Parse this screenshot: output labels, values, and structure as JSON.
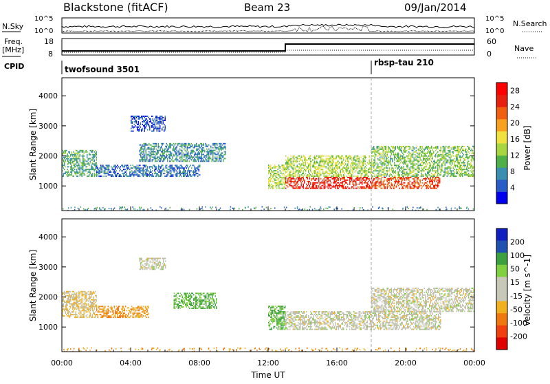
{
  "header": {
    "station": "Blackstone (fitACF)",
    "beam": "Beam 23",
    "date": "09/Jan/2014"
  },
  "summary_panels": {
    "nsky_label": "N.Sky",
    "nsearch_label": "N.Search",
    "nsky_ticks": [
      "10^5",
      "10^0"
    ],
    "nsearch_ticks": [
      "10^5",
      "10^0"
    ],
    "freq_label": "Freq.",
    "freq_unit": "[MHz]",
    "freq_ticks": [
      "18",
      "8"
    ],
    "nave_label": "Nave",
    "nave_ticks": [
      "60",
      "0"
    ],
    "cpid_label": "CPID",
    "cpid_segments": [
      {
        "name": "twofsound 3501",
        "start_hour": 0
      },
      {
        "name": "rbsp-tau 210",
        "start_hour": 18
      }
    ]
  },
  "colors": {
    "power_scale": [
      "#0000ee",
      "#2a5cc8",
      "#3a8fb0",
      "#4fb04a",
      "#a8d640",
      "#f0e040",
      "#f8a020",
      "#f06010",
      "#e82010",
      "#ff0000"
    ],
    "velocity_scale": [
      "#e00000",
      "#f04010",
      "#f07810",
      "#f0b020",
      "#c8c8b8",
      "#c8c8b8",
      "#80d040",
      "#3ca040",
      "#2050b0",
      "#1020c0"
    ],
    "ground_scatter": "#c0c0b0"
  },
  "chart_data": [
    {
      "type": "heatmap",
      "name_panel": "power",
      "ylabel": "Slant Range [km]",
      "xlabel": "",
      "yticks": [
        1000,
        2000,
        3000,
        4000
      ],
      "ylim": [
        180,
        4600
      ],
      "xlim": [
        0,
        24
      ],
      "colorbar_label": "Power [dB]",
      "colorbar_ticks": [
        4,
        8,
        12,
        16,
        20,
        24,
        28
      ],
      "colorbar_range": [
        0,
        30
      ],
      "echo_bands": [
        {
          "x_start": 0.0,
          "x_end": 2.0,
          "y_low": 1300,
          "y_high": 2200,
          "level_db": 10
        },
        {
          "x_start": 2.0,
          "x_end": 8.0,
          "y_low": 1300,
          "y_high": 1700,
          "level_db": 6
        },
        {
          "x_start": 4.5,
          "x_end": 9.5,
          "y_low": 1800,
          "y_high": 2400,
          "level_db": 8
        },
        {
          "x_start": 4.0,
          "x_end": 6.0,
          "y_low": 2800,
          "y_high": 3300,
          "level_db": 4
        },
        {
          "x_start": 12.0,
          "x_end": 13.0,
          "y_low": 900,
          "y_high": 1700,
          "level_db": 14
        },
        {
          "x_start": 13.0,
          "x_end": 18.0,
          "y_low": 900,
          "y_high": 1300,
          "level_db": 26
        },
        {
          "x_start": 13.0,
          "x_end": 18.0,
          "y_low": 1300,
          "y_high": 2000,
          "level_db": 14
        },
        {
          "x_start": 18.0,
          "x_end": 22.0,
          "y_low": 900,
          "y_high": 1300,
          "level_db": 24
        },
        {
          "x_start": 18.0,
          "x_end": 24.0,
          "y_low": 1300,
          "y_high": 2300,
          "level_db": 12
        }
      ]
    },
    {
      "type": "heatmap",
      "name_panel": "velocity",
      "ylabel": "Slant Range [km]",
      "xlabel": "Time UT",
      "xticks": [
        "00:00",
        "04:00",
        "08:00",
        "12:00",
        "16:00",
        "20:00",
        "00:00"
      ],
      "yticks": [
        1000,
        2000,
        3000,
        4000
      ],
      "ylim": [
        180,
        4600
      ],
      "xlim": [
        0,
        24
      ],
      "colorbar_label": "Velocity [m s^-1]",
      "colorbar_ticks": [
        200,
        100,
        50,
        15,
        -15,
        -50,
        -100,
        -200
      ],
      "echo_bands": [
        {
          "x_start": 0.0,
          "x_end": 2.0,
          "y_low": 1300,
          "y_high": 2200,
          "velocity": -15
        },
        {
          "x_start": 2.0,
          "x_end": 5.0,
          "y_low": 1300,
          "y_high": 1700,
          "velocity": -50
        },
        {
          "x_start": 6.5,
          "x_end": 9.0,
          "y_low": 1600,
          "y_high": 2100,
          "velocity": 50
        },
        {
          "x_start": 4.5,
          "x_end": 6.0,
          "y_low": 2900,
          "y_high": 3300,
          "velocity": 0
        },
        {
          "x_start": 12.0,
          "x_end": 13.0,
          "y_low": 900,
          "y_high": 1700,
          "velocity": 50
        },
        {
          "x_start": 13.0,
          "x_end": 22.0,
          "y_low": 900,
          "y_high": 1500,
          "velocity": 0
        },
        {
          "x_start": 18.0,
          "x_end": 24.0,
          "y_low": 1500,
          "y_high": 2300,
          "velocity": 0
        }
      ]
    }
  ]
}
